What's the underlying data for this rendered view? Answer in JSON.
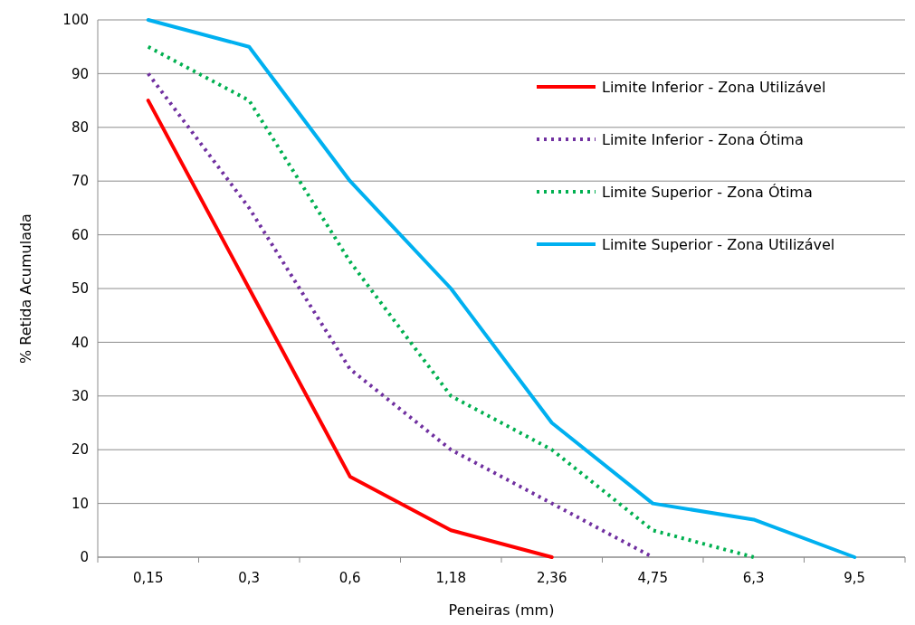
{
  "chart_data": {
    "type": "line",
    "xlabel": "Peneiras (mm)",
    "ylabel": "% Retida Acumulada",
    "categories": [
      "0,15",
      "0,3",
      "0,6",
      "1,18",
      "2,36",
      "4,75",
      "6,3",
      "9,5"
    ],
    "ylim": [
      0,
      100
    ],
    "yticks": [
      0,
      10,
      20,
      30,
      40,
      50,
      60,
      70,
      80,
      90,
      100
    ],
    "grid": "y",
    "legend": "top right",
    "marker": "none",
    "series": [
      {
        "name": "Limite Inferior - Zona Utilizável",
        "color": "#ff0000",
        "line_style": "solid",
        "values": [
          85,
          50,
          15,
          5,
          0,
          null,
          null,
          null
        ]
      },
      {
        "name": "Limite Inferior - Zona Ótima",
        "color": "#7030a0",
        "line_style": "dotted",
        "values": [
          90,
          65,
          35,
          20,
          10,
          0,
          null,
          null
        ]
      },
      {
        "name": "Limite Superior - Zona Ótima",
        "color": "#00b050",
        "line_style": "dotted",
        "values": [
          95,
          85,
          55,
          30,
          20,
          5,
          0,
          null
        ]
      },
      {
        "name": "Limite Superior - Zona Utilizável",
        "color": "#00b0f0",
        "line_style": "solid",
        "values": [
          100,
          95,
          70,
          50,
          25,
          10,
          7,
          0
        ]
      }
    ]
  }
}
